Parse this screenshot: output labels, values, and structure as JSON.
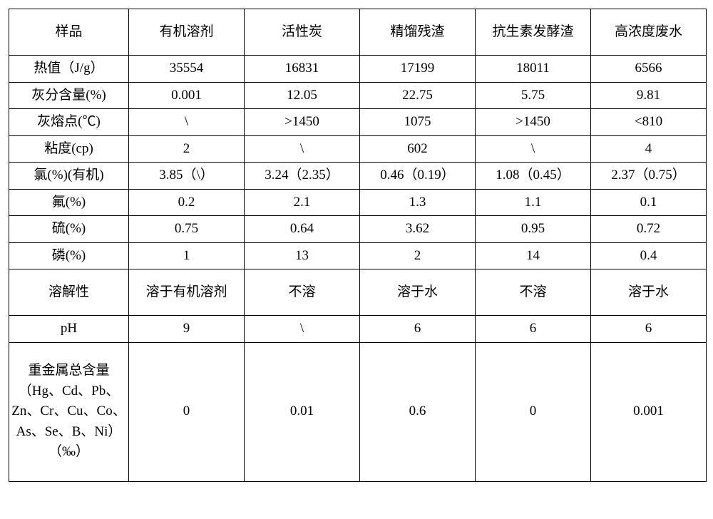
{
  "table": {
    "border_color": "#000000",
    "background_color": "#ffffff",
    "text_color": "#000000",
    "font_size": 19,
    "headers": [
      "样品",
      "有机溶剂",
      "活性炭",
      "精馏残渣",
      "抗生素发酵渣",
      "高浓度废水"
    ],
    "rows": [
      {
        "label": "热值（J/g）",
        "cells": [
          "35554",
          "16831",
          "17199",
          "18011",
          "6566"
        ]
      },
      {
        "label": "灰分含量(%)",
        "cells": [
          "0.001",
          "12.05",
          "22.75",
          "5.75",
          "9.81"
        ]
      },
      {
        "label": "灰熔点(℃)",
        "cells": [
          "\\",
          ">1450",
          "1075",
          ">1450",
          "<810"
        ]
      },
      {
        "label": "粘度(cp)",
        "cells": [
          "2",
          "\\",
          "602",
          "\\",
          "4"
        ]
      },
      {
        "label": "氯(%)(有机)",
        "cells": [
          "3.85（\\）",
          "3.24（2.35）",
          "0.46（0.19）",
          "1.08（0.45）",
          "2.37（0.75）"
        ]
      },
      {
        "label": "氟(%)",
        "cells": [
          "0.2",
          "2.1",
          "1.3",
          "1.1",
          "0.1"
        ]
      },
      {
        "label": "硫(%)",
        "cells": [
          "0.75",
          "0.64",
          "3.62",
          "0.95",
          "0.72"
        ]
      },
      {
        "label": "磷(%)",
        "cells": [
          "1",
          "13",
          "2",
          "14",
          "0.4"
        ]
      },
      {
        "label": "溶解性",
        "cells": [
          "溶于有机溶剂",
          "不溶",
          "溶于水",
          "不溶",
          "溶于水"
        ]
      },
      {
        "label": "pH",
        "cells": [
          "9",
          "\\",
          "6",
          "6",
          "6"
        ]
      },
      {
        "label": "重金属总含量（Hg、Cd、Pb、Zn、Cr、Cu、Co、As、Se、B、Ni）（‰）",
        "cells": [
          "0",
          "0.01",
          "0.6",
          "0",
          "0.001"
        ]
      }
    ]
  }
}
